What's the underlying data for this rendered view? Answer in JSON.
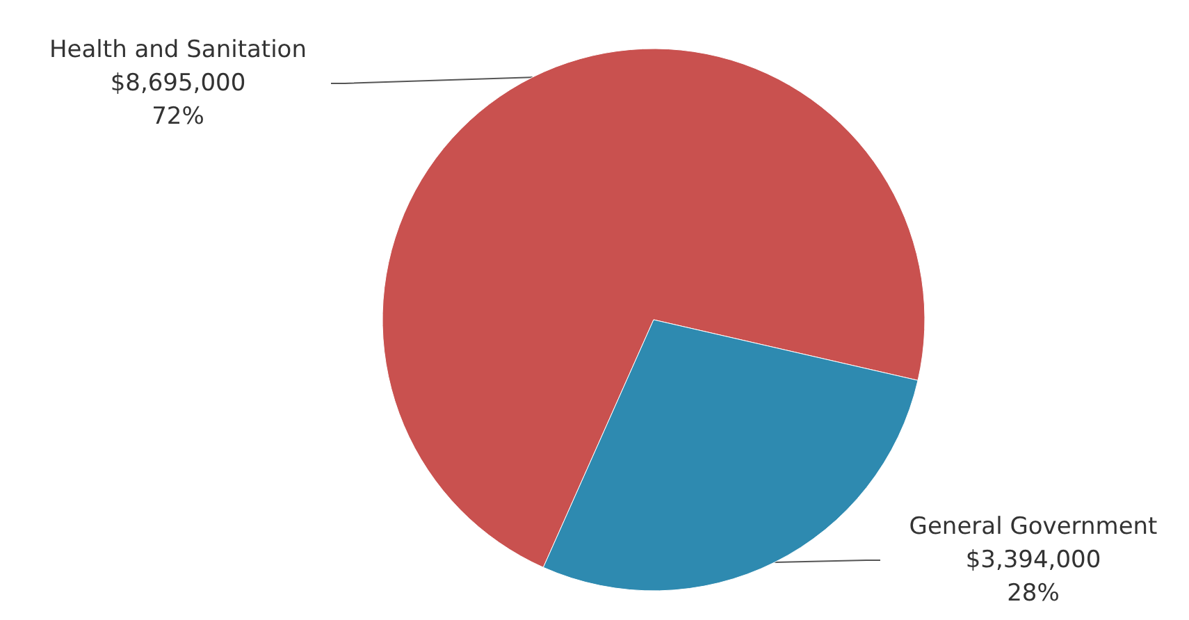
{
  "chart_data": {
    "type": "pie",
    "categories": [
      "Health and Sanitation",
      "General Government"
    ],
    "values": [
      8695000,
      3394000
    ],
    "colors": [
      "#c9514f",
      "#2e8ab0"
    ],
    "value_labels": [
      "$8,695,000\n72%",
      "$3,394,000\n28%"
    ],
    "legend": false
  }
}
